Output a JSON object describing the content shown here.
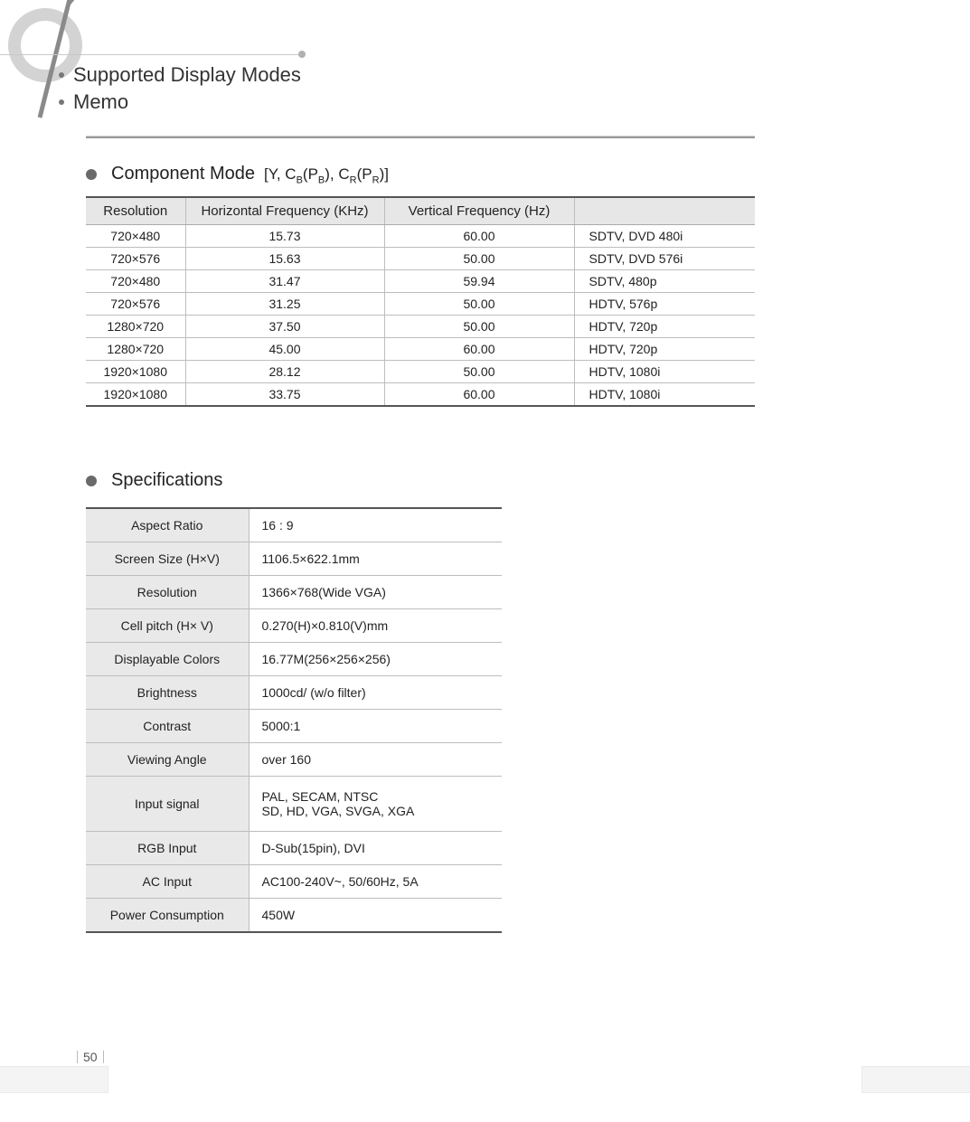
{
  "colors": {
    "page_bg": "#ffffff",
    "text": "#222222",
    "header_band_bg": "#e7e7e7",
    "row_border": "#bdbdbd",
    "heavy_border": "#555555",
    "spec_key_bg": "#e9e9e9",
    "decor_line": "#c8c8c8",
    "decor_dot": "#b0b0b0"
  },
  "header": {
    "lines": [
      {
        "text": "Supported Display Modes"
      },
      {
        "text": "Memo"
      }
    ]
  },
  "component_mode": {
    "title": "Component Mode",
    "subtitle_html": "[Y, C_B(P_B), C_R(P_R)]",
    "columns": [
      "Resolution",
      "Horizontal Frequency (KHz)",
      "Vertical Frequency (Hz)",
      ""
    ],
    "rows": [
      {
        "res": "720×480",
        "hfreq": "15.73",
        "vfreq": "60.00",
        "note": "SDTV, DVD 480i"
      },
      {
        "res": "720×576",
        "hfreq": "15.63",
        "vfreq": "50.00",
        "note": "SDTV, DVD 576i"
      },
      {
        "res": "720×480",
        "hfreq": "31.47",
        "vfreq": "59.94",
        "note": "SDTV, 480p"
      },
      {
        "res": "720×576",
        "hfreq": "31.25",
        "vfreq": "50.00",
        "note": "HDTV, 576p"
      },
      {
        "res": "1280×720",
        "hfreq": "37.50",
        "vfreq": "50.00",
        "note": "HDTV, 720p"
      },
      {
        "res": "1280×720",
        "hfreq": "45.00",
        "vfreq": "60.00",
        "note": "HDTV, 720p"
      },
      {
        "res": "1920×1080",
        "hfreq": "28.12",
        "vfreq": "50.00",
        "note": "HDTV, 1080i"
      },
      {
        "res": "1920×1080",
        "hfreq": "33.75",
        "vfreq": "60.00",
        "note": "HDTV, 1080i"
      }
    ]
  },
  "specifications": {
    "title": "Specifications",
    "rows": [
      {
        "key": "Aspect Ratio",
        "val": "16 : 9"
      },
      {
        "key": "Screen Size (H×V)",
        "val": "1106.5×622.1mm"
      },
      {
        "key": "Resolution",
        "val": "1366×768(Wide VGA)"
      },
      {
        "key": "Cell pitch (H× V)",
        "val": "0.270(H)×0.810(V)mm"
      },
      {
        "key": "Displayable Colors",
        "val": "16.77M(256×256×256)"
      },
      {
        "key": "Brightness",
        "val": "1000cd/   (w/o filter)"
      },
      {
        "key": "Contrast",
        "val": "5000:1"
      },
      {
        "key": "Viewing Angle",
        "val": "over 160"
      },
      {
        "key": "Input signal",
        "val": "PAL, SECAM, NTSC\nSD, HD, VGA, SVGA, XGA",
        "tall": true
      },
      {
        "key": "RGB Input",
        "val": "D-Sub(15pin), DVI"
      },
      {
        "key": "AC Input",
        "val": "AC100-240V~, 50/60Hz, 5A"
      },
      {
        "key": "Power Consumption",
        "val": "450W"
      }
    ]
  },
  "page_number": "50"
}
